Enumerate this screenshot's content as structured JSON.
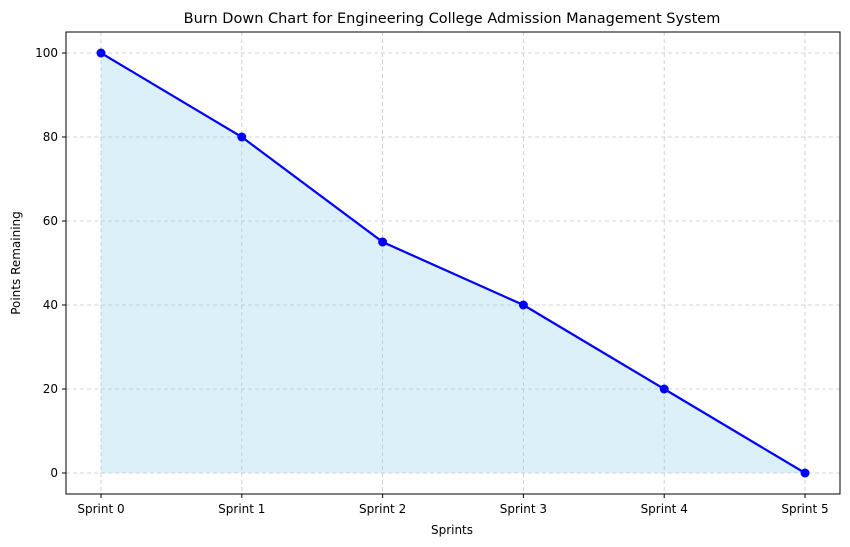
{
  "chart_data": {
    "type": "area",
    "title": "Burn Down Chart for Engineering College Admission Management System",
    "xlabel": "Sprints",
    "ylabel": "Points Remaining",
    "categories": [
      "Sprint 0",
      "Sprint 1",
      "Sprint 2",
      "Sprint 3",
      "Sprint 4",
      "Sprint 5"
    ],
    "series": [
      {
        "values": [
          100,
          80,
          55,
          40,
          20,
          0
        ]
      }
    ],
    "ylim": [
      -5,
      105
    ],
    "yticks": [
      0,
      20,
      40,
      60,
      80,
      100
    ],
    "grid": true,
    "line_color": "#0000ff",
    "fill_color": "#87ceeb",
    "grid_color": "#b0b0b0"
  }
}
